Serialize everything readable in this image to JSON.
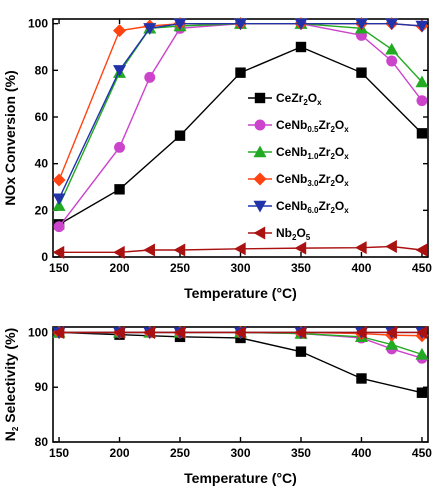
{
  "chart_data": [
    {
      "type": "line",
      "title": "",
      "xlabel": "Temperature (°C)",
      "ylabel": "NOx Conversion (%)",
      "xlim": [
        145,
        455
      ],
      "ylim": [
        0,
        102
      ],
      "x_ticks": [
        150,
        200,
        250,
        300,
        350,
        400,
        450
      ],
      "y_ticks": [
        0,
        20,
        40,
        60,
        80,
        100
      ],
      "legend_position": "right",
      "series": [
        {
          "name": "CeZr2Ox",
          "legend": [
            {
              "t": "CeZr",
              "s": false
            },
            {
              "t": "2",
              "s": true
            },
            {
              "t": "O",
              "s": false
            },
            {
              "t": "x",
              "s": true
            }
          ],
          "color": "#000000",
          "marker": "square",
          "x": [
            150,
            200,
            250,
            300,
            350,
            400,
            450
          ],
          "values": [
            14,
            29,
            52,
            79,
            90,
            79,
            53
          ]
        },
        {
          "name": "CeNb0.5Zr2Ox",
          "legend": [
            {
              "t": "CeNb",
              "s": false
            },
            {
              "t": "0.5",
              "s": true
            },
            {
              "t": "Zr",
              "s": false
            },
            {
              "t": "2",
              "s": true
            },
            {
              "t": "O",
              "s": false
            },
            {
              "t": "x",
              "s": true
            }
          ],
          "color": "#cc44cc",
          "marker": "circle",
          "x": [
            150,
            200,
            225,
            250,
            300,
            350,
            400,
            425,
            450
          ],
          "values": [
            13,
            47,
            77,
            98,
            100,
            100,
            95,
            84,
            67
          ]
        },
        {
          "name": "CeNb1.0Zr2Ox",
          "legend": [
            {
              "t": "CeNb",
              "s": false
            },
            {
              "t": "1.0",
              "s": true
            },
            {
              "t": "Zr",
              "s": false
            },
            {
              "t": "2",
              "s": true
            },
            {
              "t": "O",
              "s": false
            },
            {
              "t": "x",
              "s": true
            }
          ],
          "color": "#22aa22",
          "marker": "triangle-up",
          "x": [
            150,
            200,
            225,
            250,
            300,
            350,
            400,
            425,
            450
          ],
          "values": [
            22,
            79,
            98,
            99,
            100,
            100,
            98,
            89,
            75
          ]
        },
        {
          "name": "CeNb3.0Zr2Ox",
          "legend": [
            {
              "t": "CeNb",
              "s": false
            },
            {
              "t": "3.0",
              "s": true
            },
            {
              "t": "Zr",
              "s": false
            },
            {
              "t": "2",
              "s": true
            },
            {
              "t": "O",
              "s": false
            },
            {
              "t": "x",
              "s": true
            }
          ],
          "color": "#ff4411",
          "marker": "diamond",
          "x": [
            150,
            200,
            225,
            250,
            300,
            350,
            400,
            425,
            450
          ],
          "values": [
            33,
            97,
            99,
            100,
            100,
            100,
            100,
            100,
            99
          ]
        },
        {
          "name": "CeNb6.0Zr2Ox",
          "legend": [
            {
              "t": "CeNb",
              "s": false
            },
            {
              "t": "6.0",
              "s": true
            },
            {
              "t": "Zr",
              "s": false
            },
            {
              "t": "2",
              "s": true
            },
            {
              "t": "O",
              "s": false
            },
            {
              "t": "x",
              "s": true
            }
          ],
          "color": "#2233aa",
          "marker": "triangle-down",
          "x": [
            150,
            200,
            225,
            250,
            300,
            350,
            400,
            425,
            450
          ],
          "values": [
            25,
            80,
            98,
            100,
            100,
            100,
            100,
            100,
            99
          ]
        },
        {
          "name": "Nb2O5",
          "legend": [
            {
              "t": "Nb",
              "s": false
            },
            {
              "t": "2",
              "s": true
            },
            {
              "t": "O",
              "s": false
            },
            {
              "t": "5",
              "s": true
            }
          ],
          "color": "#aa1111",
          "marker": "triangle-left",
          "x": [
            150,
            200,
            225,
            250,
            300,
            350,
            400,
            425,
            450
          ],
          "values": [
            2,
            2,
            3,
            3,
            3.5,
            3.8,
            4,
            4.5,
            3
          ]
        }
      ]
    },
    {
      "type": "line",
      "title": "",
      "xlabel": "Temperature (°C)",
      "ylabel_parts": [
        {
          "t": "N",
          "s": false
        },
        {
          "t": "2",
          "s": true
        },
        {
          "t": " Selectivity (%)",
          "s": false
        }
      ],
      "ylabel": "N2 Selectivity (%)",
      "xlim": [
        145,
        455
      ],
      "ylim": [
        80,
        101
      ],
      "x_ticks": [
        150,
        200,
        250,
        300,
        350,
        400,
        450
      ],
      "y_ticks": [
        80,
        90,
        100
      ],
      "series": [
        {
          "name": "CeZr2Ox",
          "color": "#000000",
          "marker": "square",
          "x": [
            150,
            200,
            250,
            300,
            350,
            400,
            450
          ],
          "values": [
            100,
            99.6,
            99.2,
            99,
            96.5,
            91.6,
            89
          ]
        },
        {
          "name": "CeNb0.5Zr2Ox",
          "color": "#cc44cc",
          "marker": "circle",
          "x": [
            150,
            200,
            225,
            250,
            300,
            350,
            400,
            425,
            450
          ],
          "values": [
            100,
            100,
            100,
            100,
            100,
            99.8,
            99,
            97,
            95.3
          ]
        },
        {
          "name": "CeNb1.0Zr2Ox",
          "color": "#22aa22",
          "marker": "triangle-up",
          "x": [
            150,
            200,
            225,
            250,
            300,
            350,
            400,
            425,
            450
          ],
          "values": [
            100,
            100,
            100,
            100,
            100,
            99.8,
            99.2,
            97.8,
            96
          ]
        },
        {
          "name": "CeNb3.0Zr2Ox",
          "color": "#ff4411",
          "marker": "diamond",
          "x": [
            150,
            200,
            225,
            250,
            300,
            350,
            400,
            425,
            450
          ],
          "values": [
            100,
            100,
            100,
            100,
            100,
            100,
            99.8,
            99.5,
            99.4
          ]
        },
        {
          "name": "CeNb6.0Zr2Ox",
          "color": "#2233aa",
          "marker": "triangle-down",
          "x": [
            150,
            200,
            225,
            250,
            300,
            350,
            400,
            425,
            450
          ],
          "values": [
            100,
            100,
            100,
            100,
            100,
            100,
            100,
            100,
            100
          ]
        },
        {
          "name": "Nb2O5",
          "color": "#aa1111",
          "marker": "triangle-left",
          "x": [
            150,
            200,
            225,
            250,
            300,
            350,
            400,
            425,
            450
          ],
          "values": [
            100,
            100,
            100,
            100,
            100,
            100,
            100,
            100,
            100
          ]
        }
      ]
    }
  ]
}
